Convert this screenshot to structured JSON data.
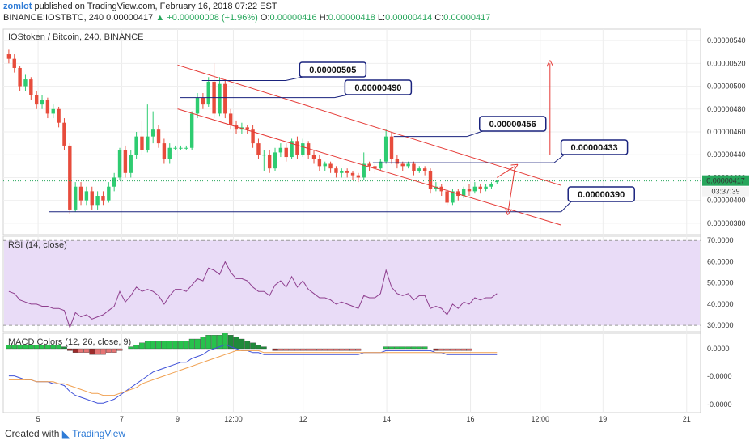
{
  "header": {
    "user": "zomlot",
    "published": "published on TradingView.com, February 16, 2018 07:22 EST",
    "symbol": "BINANCE:IOSTBTC, 240",
    "last": "0.00000417",
    "change": "+0.00000008 (+1.96%)",
    "o_label": "O:",
    "o": "0.00000416",
    "h_label": "H:",
    "h": "0.00000418",
    "l_label": "L:",
    "l": "0.00000414",
    "c_label": "C:",
    "c": "0.00000417"
  },
  "panes": {
    "main_title": "IOStoken / Bitcoin, 240, BINANCE",
    "rsi_title": "RSI (14, close)",
    "macd_title": "MACD Colors (12, 26, close, 9)"
  },
  "footer": {
    "created": "Created with",
    "brand": "TradingView"
  },
  "colors": {
    "up": "#2ecc71",
    "down": "#e74c3c",
    "channel": "#e53935",
    "hline": "#1a237e",
    "rsi_line": "#8e3e8e",
    "rsi_band": "#e9dcf7",
    "macd_line": "#3f51d8",
    "signal_line": "#f0a050",
    "price_tag": "#26a65b"
  },
  "chart_data": {
    "type": "candlestick",
    "price_axis": {
      "ticks": [
        5.4e-06,
        5.2e-06,
        5e-06,
        4.8e-06,
        4.6e-06,
        4.4e-06,
        4.2e-06,
        4e-06,
        3.8e-06
      ],
      "tick_labels": [
        "0.00000540",
        "0.00000520",
        "0.00000500",
        "0.00000480",
        "0.00000460",
        "0.00000440",
        "0.00000420",
        "0.00000400",
        "0.00000380"
      ],
      "range": [
        3.7e-06,
        5.5e-06
      ],
      "current_price_label": "0.00000417",
      "countdown": "03:37:39"
    },
    "time_axis": {
      "labels": [
        "5",
        "7",
        "9",
        "12:00",
        "12",
        "14",
        "16",
        "12:00",
        "19",
        "21"
      ],
      "positions": [
        5,
        17,
        25,
        33,
        43,
        55,
        67,
        77,
        86,
        98
      ]
    },
    "candles": [
      [
        528,
        524,
        532,
        520
      ],
      [
        524,
        516,
        528,
        512
      ],
      [
        516,
        500,
        518,
        496
      ],
      [
        500,
        506,
        510,
        496
      ],
      [
        506,
        492,
        508,
        488
      ],
      [
        492,
        484,
        496,
        480
      ],
      [
        484,
        488,
        492,
        480
      ],
      [
        488,
        476,
        490,
        472
      ],
      [
        476,
        480,
        484,
        472
      ],
      [
        480,
        468,
        482,
        464
      ],
      [
        468,
        448,
        472,
        444
      ],
      [
        448,
        392,
        450,
        388
      ],
      [
        392,
        412,
        416,
        390
      ],
      [
        412,
        400,
        416,
        396
      ],
      [
        400,
        408,
        412,
        396
      ],
      [
        408,
        396,
        412,
        392
      ],
      [
        396,
        404,
        408,
        392
      ],
      [
        404,
        400,
        408,
        396
      ],
      [
        400,
        412,
        416,
        398
      ],
      [
        412,
        420,
        424,
        408
      ],
      [
        420,
        444,
        446,
        418
      ],
      [
        444,
        424,
        448,
        420
      ],
      [
        424,
        440,
        444,
        420
      ],
      [
        440,
        456,
        460,
        436
      ],
      [
        456,
        444,
        470,
        440
      ],
      [
        444,
        456,
        484,
        442
      ],
      [
        456,
        462,
        478,
        450
      ],
      [
        462,
        450,
        466,
        446
      ],
      [
        450,
        436,
        454,
        432
      ],
      [
        436,
        446,
        450,
        432
      ],
      [
        446,
        446,
        448,
        444
      ],
      [
        446,
        446,
        448,
        444
      ],
      [
        446,
        446,
        448,
        444
      ],
      [
        446,
        476,
        478,
        444
      ],
      [
        476,
        490,
        494,
        472
      ],
      [
        490,
        484,
        494,
        480
      ],
      [
        484,
        504,
        508,
        482
      ],
      [
        504,
        476,
        520,
        472
      ],
      [
        476,
        502,
        508,
        474
      ],
      [
        502,
        476,
        506,
        472
      ],
      [
        476,
        466,
        480,
        462
      ],
      [
        466,
        462,
        470,
        458
      ],
      [
        462,
        464,
        468,
        458
      ],
      [
        464,
        462,
        466,
        458
      ],
      [
        462,
        450,
        466,
        446
      ],
      [
        450,
        440,
        454,
        436
      ],
      [
        440,
        440,
        444,
        426
      ],
      [
        440,
        428,
        444,
        424
      ],
      [
        428,
        442,
        446,
        426
      ],
      [
        442,
        446,
        450,
        438
      ],
      [
        446,
        438,
        450,
        434
      ],
      [
        438,
        452,
        454,
        436
      ],
      [
        452,
        440,
        456,
        436
      ],
      [
        440,
        450,
        454,
        438
      ],
      [
        450,
        440,
        452,
        436
      ],
      [
        440,
        436,
        444,
        432
      ],
      [
        436,
        430,
        440,
        426
      ],
      [
        430,
        432,
        434,
        426
      ],
      [
        432,
        428,
        434,
        424
      ],
      [
        428,
        424,
        430,
        420
      ],
      [
        424,
        426,
        428,
        420
      ],
      [
        426,
        424,
        428,
        420
      ],
      [
        424,
        422,
        426,
        418
      ],
      [
        422,
        420,
        424,
        416
      ],
      [
        420,
        432,
        442,
        418
      ],
      [
        432,
        430,
        434,
        426
      ],
      [
        430,
        428,
        432,
        424
      ],
      [
        428,
        434,
        436,
        426
      ],
      [
        434,
        456,
        462,
        432
      ],
      [
        456,
        436,
        460,
        432
      ],
      [
        436,
        432,
        440,
        428
      ],
      [
        432,
        430,
        434,
        426
      ],
      [
        430,
        432,
        434,
        428
      ],
      [
        432,
        426,
        434,
        422
      ],
      [
        426,
        428,
        430,
        424
      ],
      [
        428,
        426,
        430,
        422
      ],
      [
        426,
        410,
        428,
        406
      ],
      [
        410,
        412,
        416,
        408
      ],
      [
        412,
        408,
        414,
        404
      ],
      [
        408,
        398,
        410,
        396
      ],
      [
        398,
        408,
        410,
        396
      ],
      [
        408,
        404,
        410,
        400
      ],
      [
        404,
        410,
        412,
        402
      ],
      [
        410,
        408,
        414,
        404
      ],
      [
        408,
        412,
        416,
        406
      ],
      [
        412,
        410,
        414,
        406
      ],
      [
        410,
        412,
        414,
        408
      ],
      [
        412,
        414,
        416,
        410
      ],
      [
        416,
        417,
        418,
        414
      ]
    ],
    "channel": {
      "upper": [
        [
          0.25,
          5.186e-06
        ],
        [
          0.8,
          4.131e-06
        ]
      ],
      "lower": [
        [
          0.25,
          4.801e-06
        ],
        [
          0.8,
          3.784e-06
        ]
      ]
    },
    "horizontal_levels": [
      {
        "label": "0.00000505",
        "value": 5.05e-06
      },
      {
        "label": "0.00000490",
        "value": 4.9e-06
      },
      {
        "label": "0.00000456",
        "value": 4.56e-06
      },
      {
        "label": "0.00000433",
        "value": 4.33e-06
      },
      {
        "label": "0.00000390",
        "value": 3.9e-06
      }
    ],
    "target_arrow": {
      "from": 4.4e-06,
      "to": 5.2e-06
    },
    "bounce_arrows": [
      [
        4.2e-06,
        4.3e-06
      ],
      [
        4.3e-06,
        3.9e-06
      ]
    ],
    "rsi": {
      "ticks": [
        70,
        60,
        50,
        40,
        30
      ],
      "tick_labels": [
        "70.0000",
        "60.0000",
        "50.0000",
        "40.0000",
        "30.0000"
      ],
      "range": [
        27,
        72
      ],
      "band": [
        30,
        70
      ],
      "values": [
        46,
        45,
        42,
        41,
        40,
        40,
        39,
        39,
        38,
        38,
        37,
        29,
        36,
        34,
        35,
        33,
        34,
        35,
        37,
        39,
        46,
        41,
        44,
        48,
        46,
        47,
        46,
        44,
        40,
        44,
        47,
        47,
        46,
        49,
        52,
        51,
        57,
        56,
        54,
        60,
        55,
        52,
        52,
        51,
        48,
        46,
        46,
        44,
        49,
        51,
        48,
        53,
        48,
        51,
        47,
        45,
        43,
        43,
        42,
        40,
        41,
        40,
        39,
        38,
        44,
        43,
        43,
        45,
        56,
        48,
        45,
        44,
        45,
        42,
        44,
        44,
        38,
        39,
        38,
        35,
        40,
        38,
        41,
        40,
        43,
        42,
        43,
        43,
        45
      ]
    },
    "macd": {
      "tick_labels": [
        "0.0000",
        "-0.0000",
        "-0.0000"
      ],
      "histogram": [
        2,
        2,
        2,
        2,
        2,
        2,
        2,
        2,
        2,
        2,
        1,
        -1,
        -2,
        -2,
        -2,
        -3,
        -3,
        -3,
        -2,
        -2,
        -1,
        0,
        1,
        2,
        3,
        4,
        4,
        4,
        4,
        4,
        4,
        4,
        4,
        5,
        5,
        6,
        7,
        7,
        7,
        8,
        7,
        6,
        5,
        4,
        3,
        2,
        1,
        0,
        -1,
        -1,
        -1,
        -1,
        -1,
        -1,
        -1,
        -1,
        -1,
        -1,
        -1,
        -1,
        -1,
        -1,
        -1,
        -1,
        0,
        0,
        0,
        0,
        1,
        1,
        1,
        1,
        1,
        1,
        1,
        1,
        0,
        -1,
        -1,
        -1,
        -1,
        -1,
        -1,
        -1,
        0,
        0,
        0,
        0,
        0
      ],
      "macd_line": [
        -14,
        -14,
        -15,
        -16,
        -16,
        -17,
        -17,
        -17,
        -18,
        -18,
        -19,
        -22,
        -24,
        -25,
        -26,
        -27,
        -28,
        -28,
        -27,
        -26,
        -24,
        -22,
        -20,
        -18,
        -16,
        -14,
        -12,
        -11,
        -10,
        -9,
        -8,
        -7,
        -7,
        -5,
        -4,
        -3,
        -1,
        0,
        1,
        2,
        1,
        0,
        -1,
        -1,
        -2,
        -2,
        -3,
        -3,
        -3,
        -3,
        -3,
        -3,
        -3,
        -3,
        -3,
        -3,
        -3,
        -3,
        -3,
        -3,
        -3,
        -3,
        -3,
        -3,
        -2,
        -2,
        -2,
        -2,
        -1,
        -1,
        -1,
        -1,
        -1,
        -1,
        -1,
        -1,
        -1,
        -2,
        -2,
        -3,
        -3,
        -3,
        -3,
        -3,
        -3,
        -3,
        -3,
        -3,
        -3
      ],
      "signal_line": [
        -16,
        -16,
        -16,
        -16,
        -16,
        -17,
        -17,
        -17,
        -17,
        -18,
        -18,
        -19,
        -20,
        -21,
        -22,
        -23,
        -23,
        -24,
        -24,
        -24,
        -23,
        -22,
        -21,
        -20,
        -18,
        -17,
        -16,
        -15,
        -14,
        -13,
        -12,
        -11,
        -10,
        -9,
        -8,
        -7,
        -6,
        -5,
        -4,
        -3,
        -2,
        -1,
        -1,
        -1,
        -1,
        -1,
        -2,
        -2,
        -2,
        -2,
        -2,
        -2,
        -2,
        -2,
        -2,
        -2,
        -2,
        -2,
        -2,
        -2,
        -2,
        -2,
        -2,
        -2,
        -2,
        -2,
        -2,
        -2,
        -2,
        -2,
        -2,
        -2,
        -2,
        -2,
        -2,
        -2,
        -2,
        -2,
        -2,
        -2,
        -2,
        -2,
        -2,
        -2,
        -2,
        -2,
        -2,
        -2,
        -2
      ]
    }
  }
}
